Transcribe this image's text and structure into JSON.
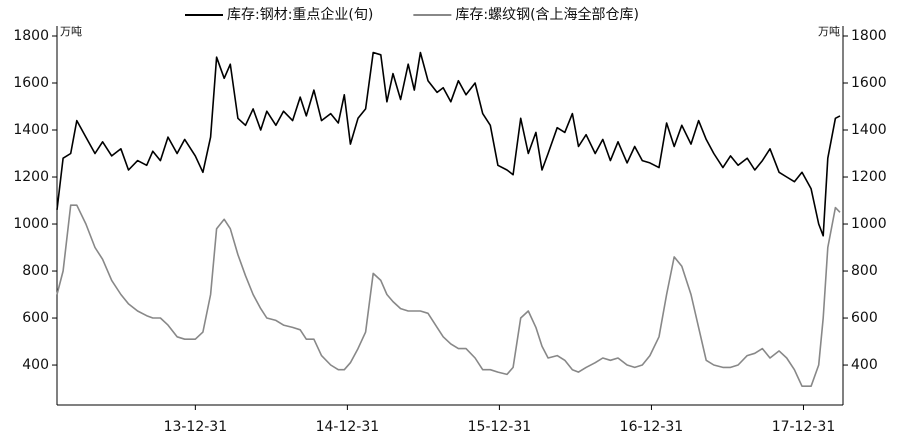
{
  "chart_data": {
    "type": "line",
    "ylabel": "万吨",
    "y2label": "万吨",
    "x": [
      2013.09,
      2013.13,
      2013.18,
      2013.22,
      2013.28,
      2013.34,
      2013.39,
      2013.45,
      2013.51,
      2013.56,
      2013.62,
      2013.68,
      2013.72,
      2013.77,
      2013.82,
      2013.88,
      2013.93,
      2014.0,
      2014.05,
      2014.1,
      2014.14,
      2014.19,
      2014.23,
      2014.28,
      2014.33,
      2014.38,
      2014.43,
      2014.47,
      2014.53,
      2014.58,
      2014.64,
      2014.69,
      2014.73,
      2014.78,
      2014.83,
      2014.89,
      2014.94,
      2014.98,
      2015.02,
      2015.07,
      2015.12,
      2015.17,
      2015.22,
      2015.26,
      2015.3,
      2015.35,
      2015.4,
      2015.44,
      2015.48,
      2015.53,
      2015.59,
      2015.63,
      2015.68,
      2015.73,
      2015.78,
      2015.84,
      2015.89,
      2015.94,
      2015.99,
      2016.05,
      2016.09,
      2016.14,
      2016.19,
      2016.24,
      2016.28,
      2016.32,
      2016.38,
      2016.43,
      2016.48,
      2016.52,
      2016.57,
      2016.63,
      2016.68,
      2016.73,
      2016.78,
      2016.84,
      2016.89,
      2016.94,
      2016.99,
      2017.05,
      2017.1,
      2017.15,
      2017.2,
      2017.26,
      2017.31,
      2017.36,
      2017.41,
      2017.47,
      2017.52,
      2017.57,
      2017.63,
      2017.68,
      2017.73,
      2017.78,
      2017.84,
      2017.89,
      2017.94,
      2017.99,
      2018.05,
      2018.1,
      2018.13,
      2018.16,
      2018.21,
      2018.24
    ],
    "series": [
      {
        "name": "库存:钢材:重点企业(旬)",
        "color": "#000000",
        "values": [
          1060,
          1280,
          1300,
          1440,
          1370,
          1300,
          1350,
          1290,
          1320,
          1230,
          1270,
          1250,
          1310,
          1270,
          1370,
          1300,
          1360,
          1290,
          1220,
          1370,
          1710,
          1620,
          1680,
          1450,
          1420,
          1490,
          1400,
          1480,
          1420,
          1480,
          1440,
          1540,
          1460,
          1570,
          1440,
          1470,
          1430,
          1550,
          1340,
          1450,
          1490,
          1730,
          1720,
          1520,
          1640,
          1530,
          1680,
          1570,
          1730,
          1610,
          1560,
          1580,
          1520,
          1610,
          1550,
          1600,
          1470,
          1420,
          1250,
          1230,
          1210,
          1450,
          1300,
          1390,
          1230,
          1300,
          1410,
          1390,
          1470,
          1330,
          1380,
          1300,
          1360,
          1270,
          1350,
          1260,
          1330,
          1270,
          1260,
          1240,
          1430,
          1330,
          1420,
          1340,
          1440,
          1360,
          1300,
          1240,
          1290,
          1250,
          1280,
          1230,
          1270,
          1320,
          1220,
          1200,
          1180,
          1220,
          1150,
          1000,
          950,
          1280,
          1450,
          1460
        ]
      },
      {
        "name": "库存:螺纹钢(含上海全部仓库)",
        "color": "#888888",
        "axis": "y2",
        "values": [
          700,
          800,
          1080,
          1080,
          1000,
          900,
          850,
          760,
          700,
          660,
          630,
          610,
          600,
          600,
          570,
          520,
          510,
          510,
          540,
          700,
          980,
          1020,
          980,
          870,
          780,
          700,
          640,
          600,
          590,
          570,
          560,
          550,
          510,
          510,
          440,
          400,
          380,
          380,
          410,
          470,
          540,
          790,
          760,
          700,
          670,
          640,
          630,
          630,
          630,
          620,
          560,
          520,
          490,
          470,
          470,
          430,
          380,
          380,
          370,
          360,
          390,
          600,
          630,
          560,
          480,
          430,
          440,
          420,
          380,
          370,
          390,
          410,
          430,
          420,
          430,
          400,
          390,
          400,
          440,
          520,
          700,
          860,
          820,
          700,
          560,
          420,
          400,
          390,
          390,
          400,
          440,
          450,
          470,
          430,
          460,
          430,
          380,
          310,
          310,
          400,
          600,
          900,
          1070,
          1050
        ]
      }
    ],
    "xlim": [
      2013.09,
      2018.26
    ],
    "xticks": [
      {
        "value": 2014.0,
        "label": "13-12-31"
      },
      {
        "value": 2015.0,
        "label": "14-12-31"
      },
      {
        "value": 2016.0,
        "label": "15-12-31"
      },
      {
        "value": 2017.0,
        "label": "16-12-31"
      },
      {
        "value": 2018.0,
        "label": "17-12-31"
      }
    ],
    "ylim": [
      230,
      1800
    ],
    "yticks": [
      400,
      600,
      800,
      1000,
      1200,
      1400,
      1600,
      1800
    ],
    "y2lim": [
      230,
      1800
    ],
    "y2ticks": [
      400,
      600,
      800,
      1000,
      1200,
      1400,
      1600,
      1800
    ],
    "legend": "top"
  }
}
